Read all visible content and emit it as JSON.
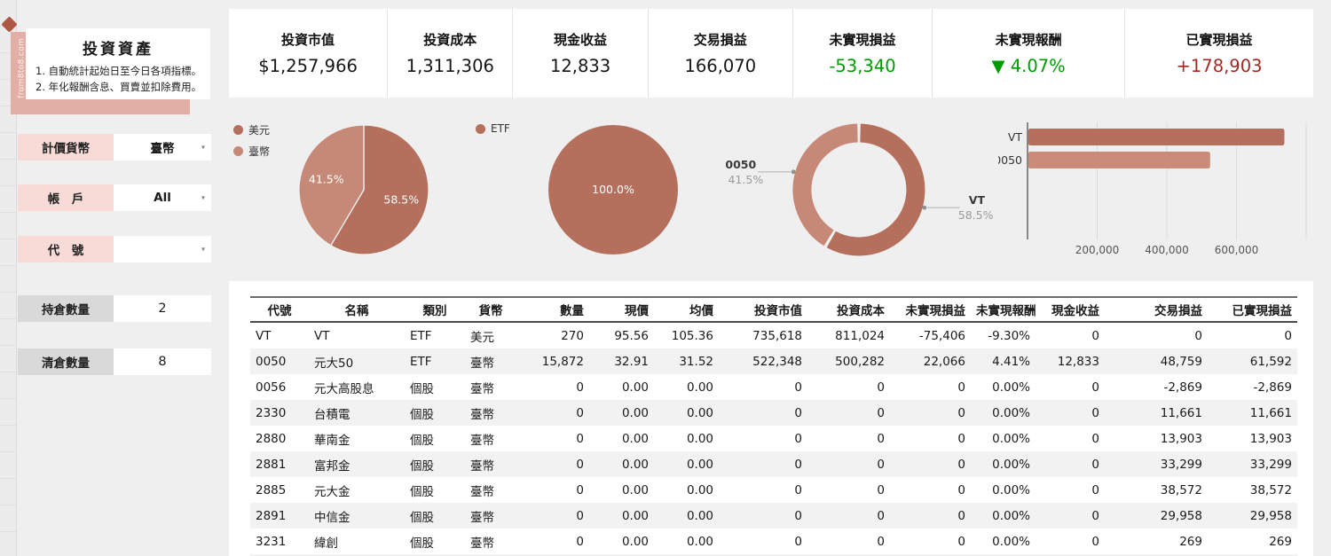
{
  "watermark_text": "© from8to8.com",
  "sidebar": {
    "title": "投資資產",
    "notes": [
      "1. 自動統計起始日至今日各項指標。",
      "2. 年化報酬含息、買賣並扣除費用。"
    ],
    "filters": [
      {
        "label": "計價貨幣",
        "value": "臺幣"
      },
      {
        "label": "帳　戶",
        "value": "All"
      },
      {
        "label": "代　號",
        "value": ""
      }
    ],
    "stats": [
      {
        "label": "持倉數量",
        "value": "2"
      },
      {
        "label": "清倉數量",
        "value": "8"
      }
    ]
  },
  "kpis": [
    {
      "label": "投資市值",
      "value": "$1,257,966",
      "color": "dark"
    },
    {
      "label": "投資成本",
      "value": "1,311,306",
      "color": "dark"
    },
    {
      "label": "現金收益",
      "value": "12,833",
      "color": "dark"
    },
    {
      "label": "交易損益",
      "value": "166,070",
      "color": "dark"
    },
    {
      "label": "未實現損益",
      "value": "-53,340",
      "color": "green"
    },
    {
      "label": "未實現報酬",
      "value": "▼ 4.07%",
      "color": "green"
    },
    {
      "label": "已實現損益",
      "value": "+178,903",
      "color": "red"
    }
  ],
  "colors": {
    "accent_dark": "#b4705c",
    "accent_light": "#c78977",
    "green": "#009a00",
    "red": "#9f2a24",
    "pink_label": "#f8dbd7",
    "pink_strip": "#e2afa7",
    "gray_label": "#d9d9d9",
    "stripe": "#f2f2f2"
  },
  "chart_data": [
    {
      "type": "pie",
      "name": "currency-allocation",
      "legend_position": "left",
      "value_suffix": "%",
      "slices": [
        {
          "label": "美元",
          "value": 58.5,
          "color": "#b4705c"
        },
        {
          "label": "臺幣",
          "value": 41.5,
          "color": "#c78977"
        }
      ]
    },
    {
      "type": "pie",
      "name": "category-allocation",
      "legend_position": "left",
      "value_suffix": "%",
      "slices": [
        {
          "label": "ETF",
          "value": 100.0,
          "color": "#b4705c"
        }
      ]
    },
    {
      "type": "donut",
      "name": "holdings-allocation",
      "value_suffix": "%",
      "slices": [
        {
          "label": "VT",
          "value": 58.5,
          "color": "#b4705c"
        },
        {
          "label": "0050",
          "value": 41.5,
          "color": "#c78977"
        }
      ]
    },
    {
      "type": "bar",
      "name": "holdings-market-value",
      "orientation": "horizontal",
      "categories": [
        "VT",
        "0050"
      ],
      "values": [
        735618,
        522348
      ],
      "colors": [
        "#b4705c",
        "#ca8b79"
      ],
      "xlim": [
        0,
        800000
      ],
      "xticks": [
        200000,
        400000,
        600000
      ],
      "xtick_labels": [
        "200,000",
        "400,000",
        "600,000"
      ],
      "grid": true,
      "title": "",
      "xlabel": "",
      "ylabel": ""
    }
  ],
  "table": {
    "headers": [
      "代號",
      "名稱",
      "類別",
      "貨幣",
      "數量",
      "現價",
      "均價",
      "投資市值",
      "投資成本",
      "未實現損益",
      "未實現報酬",
      "現金收益",
      "交易損益",
      "已實現損益"
    ],
    "rows": [
      [
        "VT",
        "VT",
        "ETF",
        "美元",
        "270",
        "95.56",
        "105.36",
        "735,618",
        "811,024",
        "-75,406",
        "-9.30%",
        "0",
        "0",
        "0"
      ],
      [
        "0050",
        "元大50",
        "ETF",
        "臺幣",
        "15,872",
        "32.91",
        "31.52",
        "522,348",
        "500,282",
        "22,066",
        "4.41%",
        "12,833",
        "48,759",
        "61,592"
      ],
      [
        "0056",
        "元大高股息",
        "個股",
        "臺幣",
        "0",
        "0.00",
        "0.00",
        "0",
        "0",
        "0",
        "0.00%",
        "0",
        "-2,869",
        "-2,869"
      ],
      [
        "2330",
        "台積電",
        "個股",
        "臺幣",
        "0",
        "0.00",
        "0.00",
        "0",
        "0",
        "0",
        "0.00%",
        "0",
        "11,661",
        "11,661"
      ],
      [
        "2880",
        "華南金",
        "個股",
        "臺幣",
        "0",
        "0.00",
        "0.00",
        "0",
        "0",
        "0",
        "0.00%",
        "0",
        "13,903",
        "13,903"
      ],
      [
        "2881",
        "富邦金",
        "個股",
        "臺幣",
        "0",
        "0.00",
        "0.00",
        "0",
        "0",
        "0",
        "0.00%",
        "0",
        "33,299",
        "33,299"
      ],
      [
        "2885",
        "元大金",
        "個股",
        "臺幣",
        "0",
        "0.00",
        "0.00",
        "0",
        "0",
        "0",
        "0.00%",
        "0",
        "38,572",
        "38,572"
      ],
      [
        "2891",
        "中信金",
        "個股",
        "臺幣",
        "0",
        "0.00",
        "0.00",
        "0",
        "0",
        "0",
        "0.00%",
        "0",
        "29,958",
        "29,958"
      ],
      [
        "3231",
        "緯創",
        "個股",
        "臺幣",
        "0",
        "0.00",
        "0.00",
        "0",
        "0",
        "0",
        "0.00%",
        "0",
        "269",
        "269"
      ]
    ]
  }
}
